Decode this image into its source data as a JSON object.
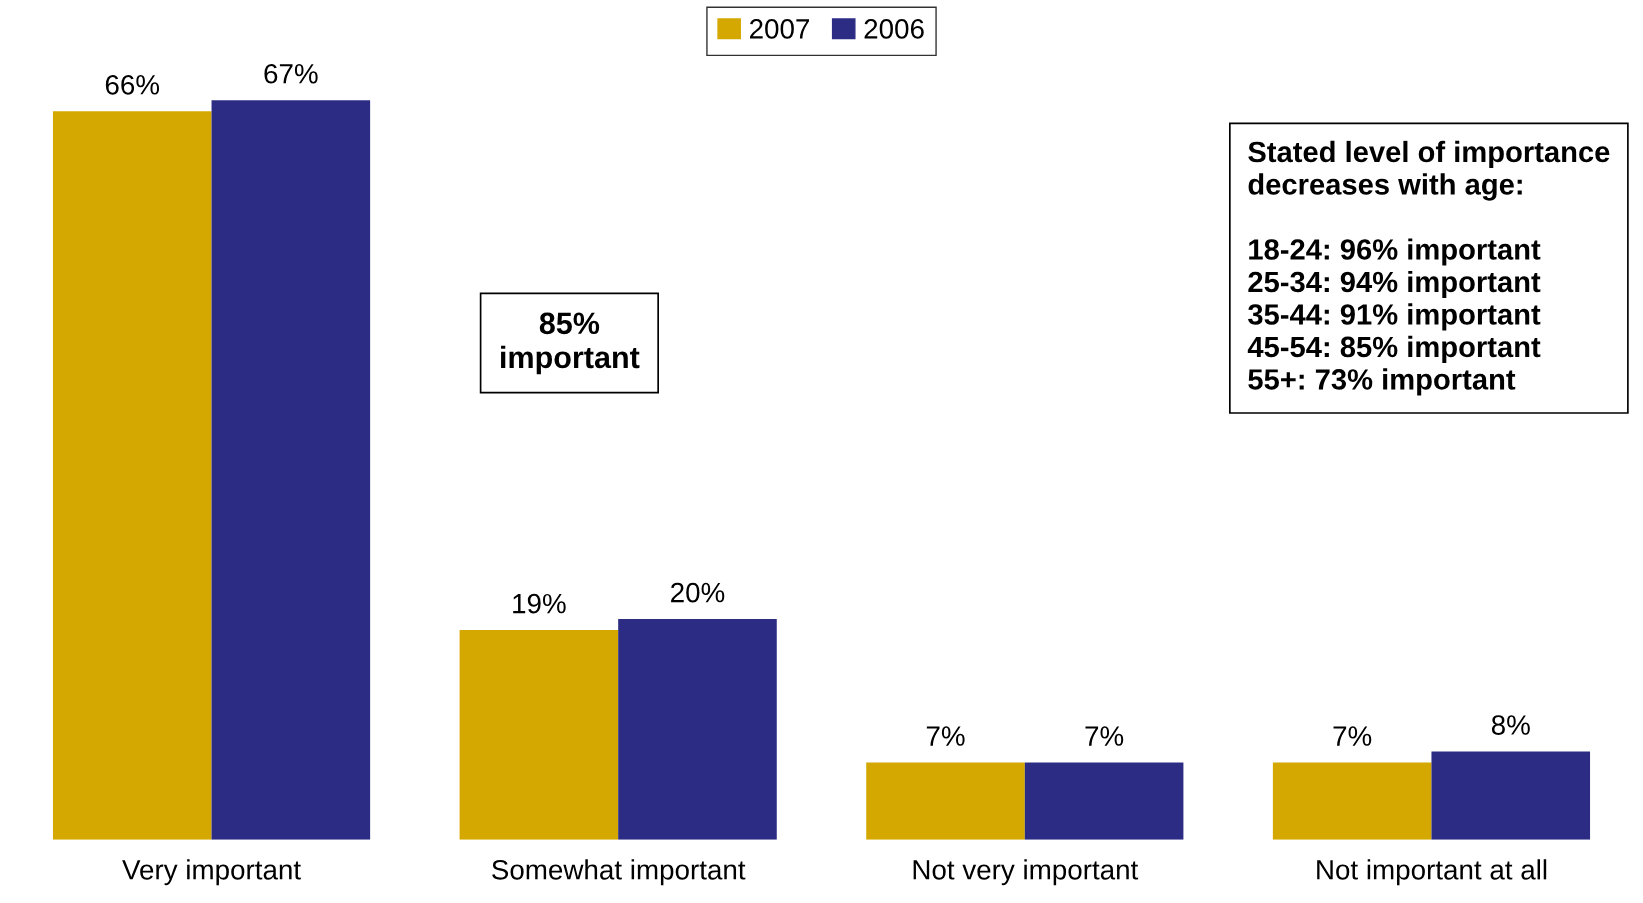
{
  "chart_data": {
    "type": "bar",
    "categories": [
      "Very important",
      "Somewhat important",
      "Not very important",
      "Not important at all"
    ],
    "series": [
      {
        "name": "2007",
        "color": "#d4a800",
        "values": [
          66,
          19,
          7,
          7
        ],
        "value_labels": [
          "66%",
          "19%",
          "7%",
          "7%"
        ]
      },
      {
        "name": "2006",
        "color": "#2c2c85",
        "values": [
          67,
          20,
          7,
          8
        ],
        "value_labels": [
          "67%",
          "20%",
          "7%",
          "8%"
        ]
      }
    ],
    "legend": "top",
    "annotations": [
      "85%\nimportant",
      "Stated level of importance\ndecreases with age:\n\n18-24: 96% important\n25-34: 94% important\n35-44: 91% important\n45-54: 85% important\n55+: 73% important"
    ]
  }
}
